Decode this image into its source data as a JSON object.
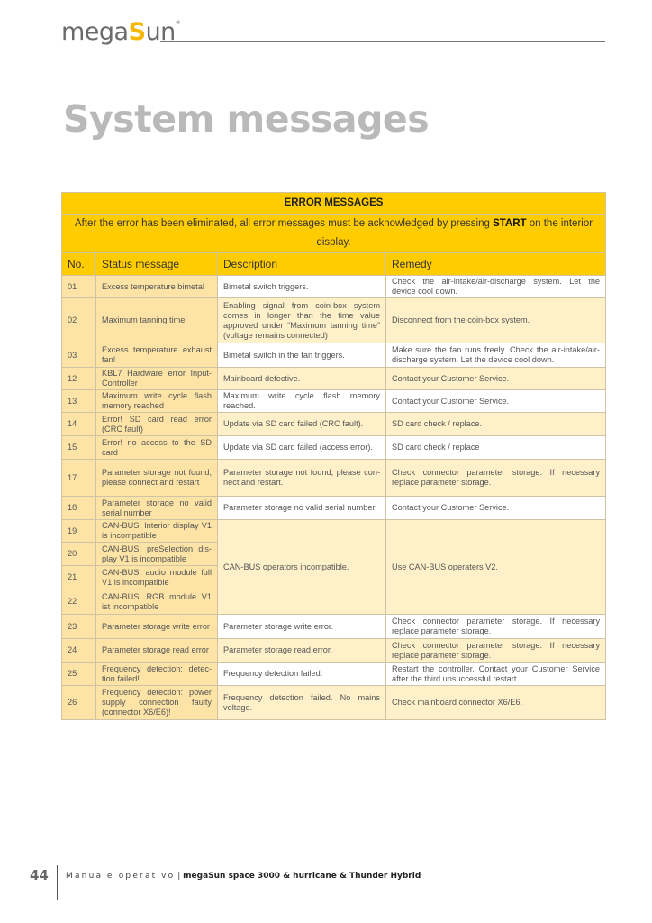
{
  "header": {
    "logo_text": "megaSun",
    "logo_prefix": "mega",
    "logo_s": "S",
    "logo_suffix": "un",
    "logo_reg": "®"
  },
  "page_title": "System messages",
  "table": {
    "title": "ERROR MESSAGES",
    "note_before": "After the error has been eliminated, all error messages must be acknowledged by pressing ",
    "note_bold": "START",
    "note_after": " on the interior display.",
    "columns": [
      "No.",
      "Status message",
      "Description",
      "Remedy"
    ],
    "rows": [
      {
        "no": "01",
        "status": "Excess temperature bimetal",
        "description": "Bimetal switch triggers.",
        "remedy": "Check the air-intake/air-discharge system. Let the device cool down."
      },
      {
        "no": "02",
        "status": "Maximum tanning time!",
        "description": "Enabling signal from coin-box system comes in longer than the time value approved under “Maximum tanning time” (voltage remains connected)",
        "remedy": "Disconnect from the coin-box system."
      },
      {
        "no": "03",
        "status": "Excess temperature exhaust fan!",
        "description": "Bimetal switch in the fan triggers.",
        "remedy": "Make sure the fan runs freely. Check the air-intake/air-discharge system. Let the device cool down."
      },
      {
        "no": "12",
        "status": "KBL7 Hardware error Input-Controller",
        "description": "Mainboard defective.",
        "remedy": "Contact your Customer Service."
      },
      {
        "no": "13",
        "status": "Maximum write cycle flash memory reached",
        "description": "Maximum write cycle flash memory reached.",
        "remedy": "Contact your Customer Service."
      },
      {
        "no": "14",
        "status": "Error! SD card read error (CRC fault)",
        "description": "Update via SD card failed (CRC fault).",
        "remedy": "SD card check / replace."
      },
      {
        "no": "15",
        "status": "Error! no access to the SD card",
        "description": "Update via SD card failed (access error).",
        "remedy": "SD card check / replace"
      },
      {
        "no": "17",
        "status": "Parameter storage not found, please connect and restart",
        "description": "Parameter storage not found, please con-nect and restart.",
        "remedy": "Check connector parameter storage. If necessary replace parameter storage."
      },
      {
        "no": "18",
        "status": "Parameter storage no valid serial number",
        "description": "Parameter storage no valid serial number.",
        "remedy": "Contact your Customer Service."
      },
      {
        "no": "19",
        "status": "CAN-BUS: Interior display V1 is incompatible",
        "description": "CAN-BUS operators incompatible.",
        "remedy": "Use CAN-BUS operaters V2.",
        "span": 4
      },
      {
        "no": "20",
        "status": "CAN-BUS: preSelection dis-play V1 is incompatible"
      },
      {
        "no": "21",
        "status": "CAN-BUS: audio module full V1 is incompatible"
      },
      {
        "no": "22",
        "status": "CAN-BUS: RGB module V1 ist incompatible"
      },
      {
        "no": "23",
        "status": "Parameter storage write error",
        "description": "Parameter storage write error.",
        "remedy": "Check connector parameter storage. If necessary replace parameter storage."
      },
      {
        "no": "24",
        "status": "Parameter storage read error",
        "description": "Parameter storage read error.",
        "remedy": "Check connector parameter storage. If necessary replace parameter storage."
      },
      {
        "no": "25",
        "status": "Frequency detection: detec-tion failed!",
        "description": "Frequency detection failed.",
        "remedy": "Restart the controller. Contact your Customer Service after the third unsuccessful restart."
      },
      {
        "no": "26",
        "status": "Frequency detection: power supply connection faulty (connector X6/E6)!",
        "description": "Frequency detection failed. No mains voltage.",
        "remedy": "Check mainboard connector X6/E6."
      }
    ]
  },
  "footer": {
    "page_number": "44",
    "manual_label": "Manuale operativo",
    "separator": "|",
    "product": "megaSun space 3000 & hurricane & Thunder Hybrid"
  },
  "colors": {
    "brand_yellow": "#ffcc00",
    "title_gray": "#b9b9b9"
  }
}
